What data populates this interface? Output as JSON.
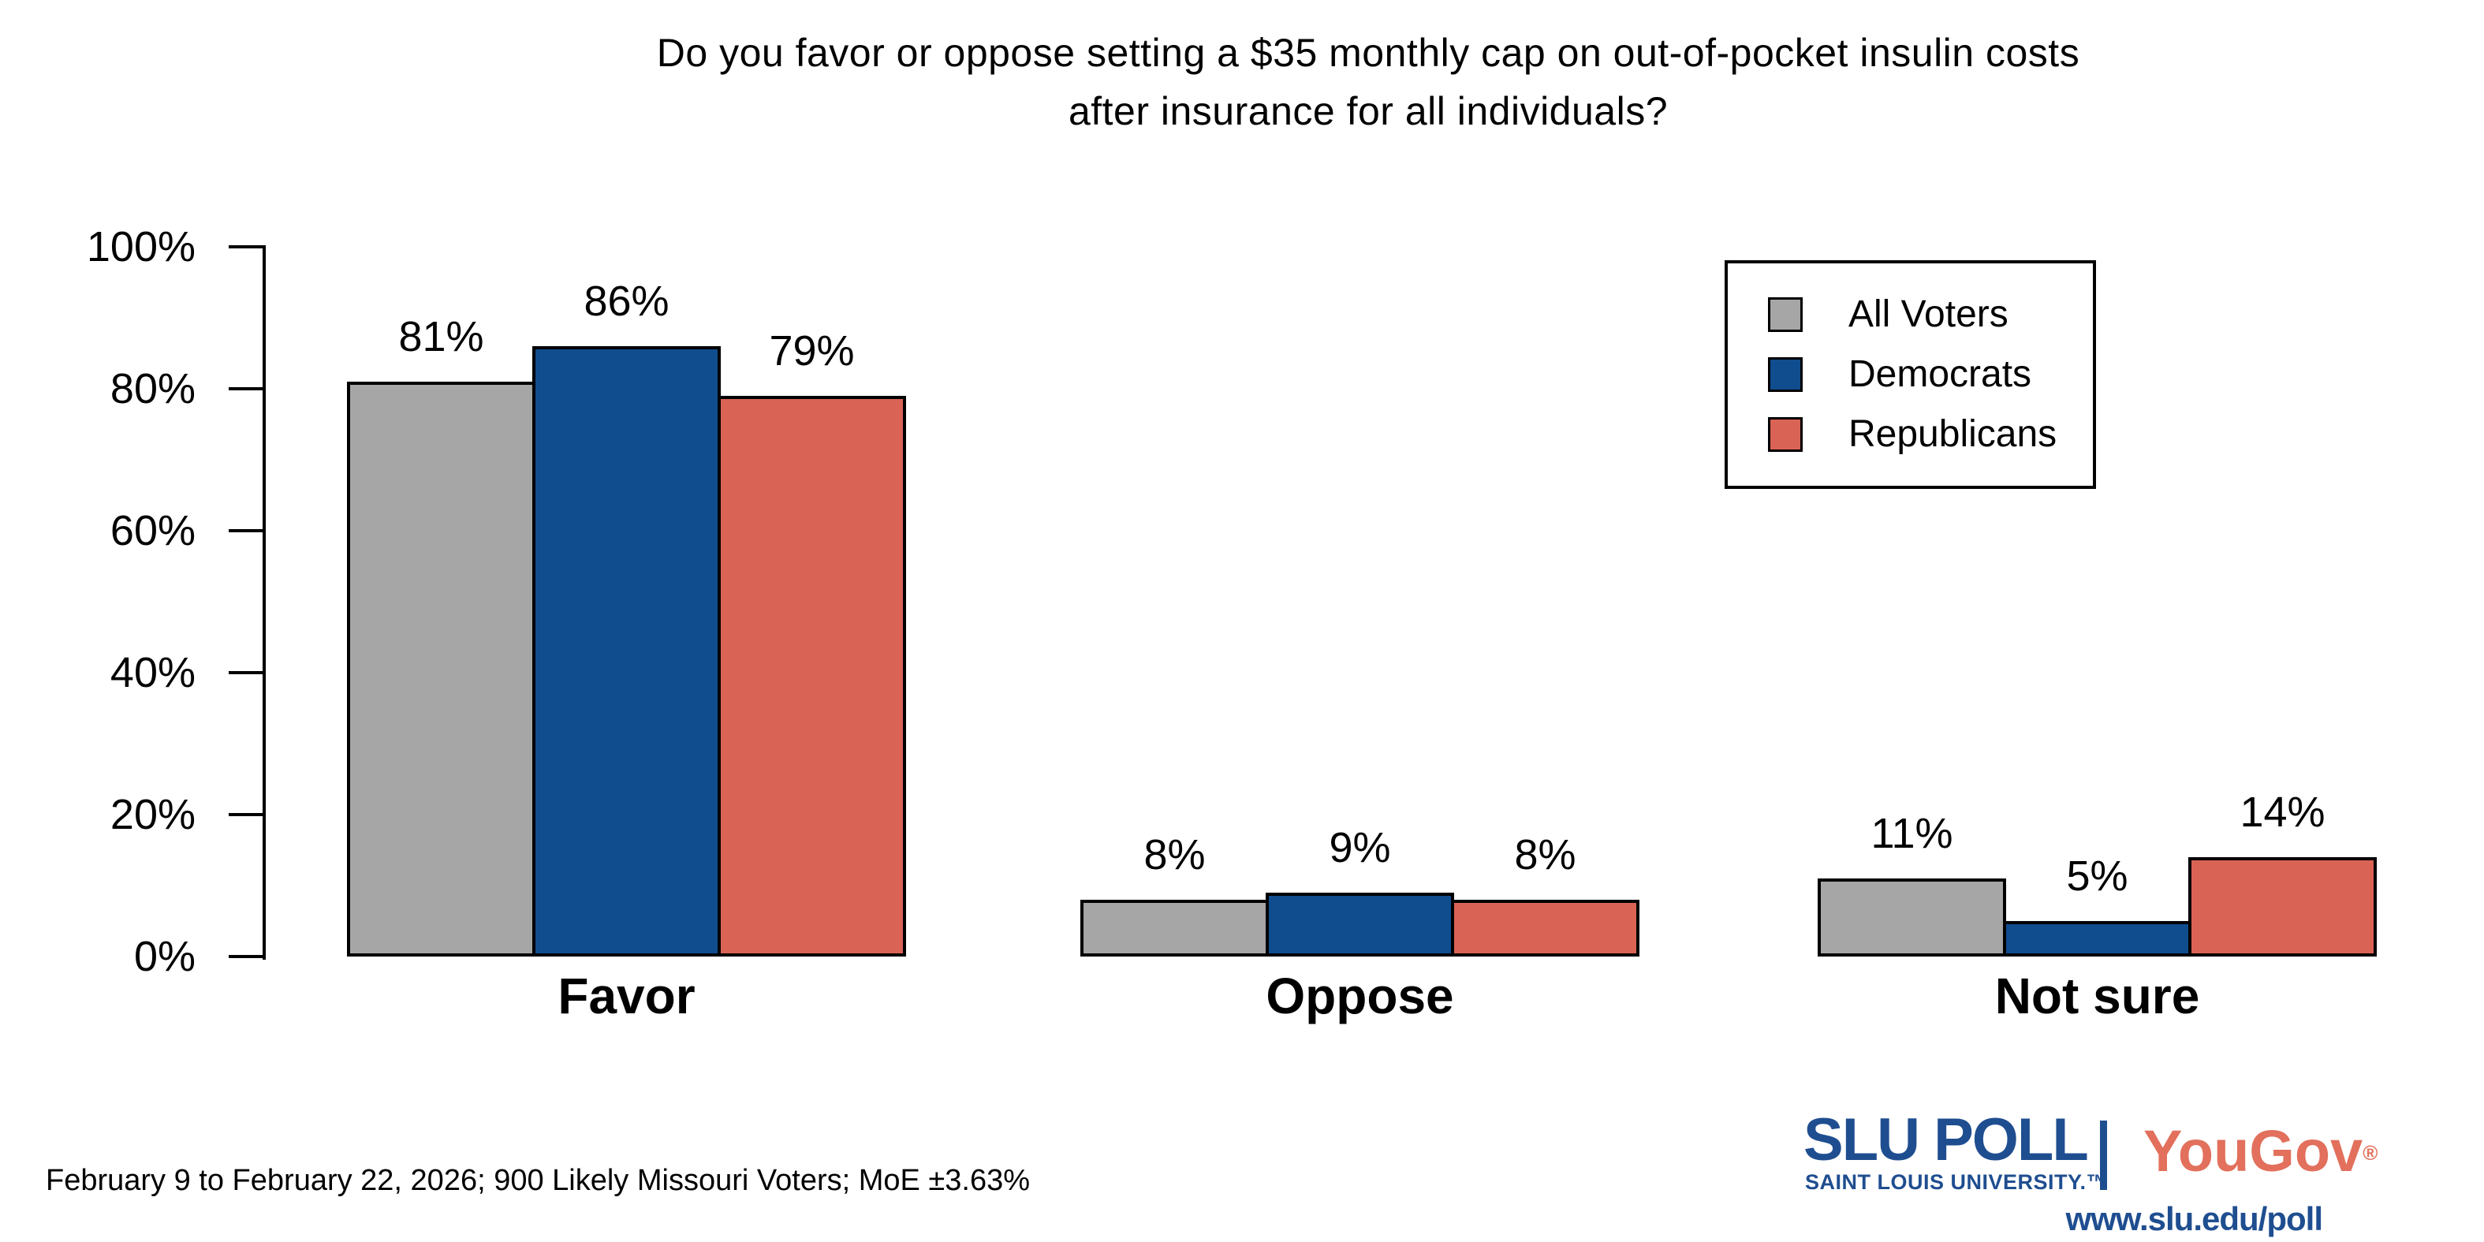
{
  "title": "Do you favor or oppose setting a $35 monthly cap on out-of-pocket insulin costs\nafter insurance for all individuals?",
  "chart_data": {
    "type": "bar",
    "categories": [
      "Favor",
      "Oppose",
      "Not sure"
    ],
    "series": [
      {
        "name": "All Voters",
        "color": "#A6A6A6",
        "values": [
          81,
          8,
          11
        ]
      },
      {
        "name": "Democrats",
        "color": "#104D8F",
        "values": [
          86,
          9,
          5
        ]
      },
      {
        "name": "Republicans",
        "color": "#D96355",
        "values": [
          79,
          8,
          14
        ]
      }
    ],
    "value_labels": [
      [
        "81%",
        "86%",
        "79%"
      ],
      [
        "8%",
        "9%",
        "8%"
      ],
      [
        "11%",
        "5%",
        "14%"
      ]
    ],
    "yticks": [
      "0%",
      "20%",
      "40%",
      "60%",
      "80%",
      "100%"
    ],
    "ylim": [
      0,
      100
    ],
    "grid": false,
    "legend_position": "top-right",
    "bar_outline_color": "#000000"
  },
  "footer": {
    "note": "February 9 to February 22, 2026; 900 Likely Missouri Voters; MoE ±3.63%"
  },
  "branding": {
    "slu_poll": "SLU POLL",
    "slu_sub": "SAINT LOUIS UNIVERSITY.™",
    "yougov": "YouGov",
    "yougov_reg": "®",
    "url": "www.slu.edu/poll",
    "slu_blue": "#1F4E90",
    "yougov_red": "#E2705C"
  }
}
